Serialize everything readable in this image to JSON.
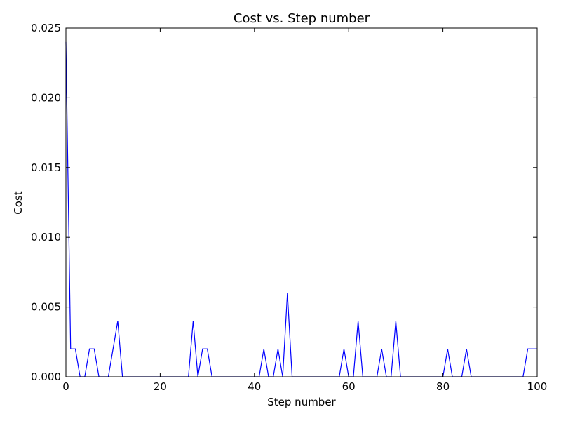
{
  "chart_data": {
    "type": "line",
    "title": "Cost vs. Step number",
    "xlabel": "Step number",
    "ylabel": "Cost",
    "xlim": [
      0,
      100
    ],
    "ylim": [
      0,
      0.025
    ],
    "grid": false,
    "x_ticks": [
      0,
      20,
      40,
      60,
      80,
      100
    ],
    "x_tick_labels": [
      "0",
      "20",
      "40",
      "60",
      "80",
      "100"
    ],
    "y_ticks": [
      0,
      0.005,
      0.01,
      0.015,
      0.02,
      0.025
    ],
    "y_tick_labels": [
      "0.000",
      "0.005",
      "0.010",
      "0.015",
      "0.020",
      "0.025"
    ],
    "line_color": "#0000ff",
    "series": [
      {
        "x": [
          0,
          1,
          2,
          3,
          4,
          5,
          6,
          7,
          8,
          9,
          10,
          11,
          12,
          13,
          14,
          15,
          16,
          17,
          18,
          19,
          20,
          21,
          22,
          23,
          24,
          25,
          26,
          27,
          28,
          29,
          30,
          31,
          32,
          33,
          34,
          35,
          36,
          37,
          38,
          39,
          40,
          41,
          42,
          43,
          44,
          45,
          46,
          47,
          48,
          49,
          50,
          51,
          52,
          53,
          54,
          55,
          56,
          57,
          58,
          59,
          60,
          61,
          62,
          63,
          64,
          65,
          66,
          67,
          68,
          69,
          70,
          71,
          72,
          73,
          74,
          75,
          76,
          77,
          78,
          79,
          80,
          81,
          82,
          83,
          84,
          85,
          86,
          87,
          88,
          89,
          90,
          91,
          92,
          93,
          94,
          95,
          96,
          97,
          98,
          99,
          100
        ],
        "y": [
          0.024,
          0.002,
          0.002,
          0,
          0,
          0.002,
          0.002,
          0,
          0,
          0,
          0.002,
          0.004,
          0,
          0,
          0,
          0,
          0,
          0,
          0,
          0,
          0,
          0,
          0,
          0,
          0,
          0,
          0,
          0.004,
          0,
          0.002,
          0.002,
          0,
          0,
          0,
          0,
          0,
          0,
          0,
          0,
          0,
          0,
          0,
          0.002,
          0,
          0,
          0.002,
          0,
          0.006,
          0,
          0,
          0,
          0,
          0,
          0,
          0,
          0,
          0,
          0,
          0,
          0.002,
          0,
          0,
          0.004,
          0,
          0,
          0,
          0,
          0.002,
          0,
          0,
          0.004,
          0,
          0,
          0,
          0,
          0,
          0,
          0,
          0,
          0,
          0,
          0.002,
          0,
          0,
          0,
          0.002,
          0,
          0,
          0,
          0,
          0,
          0,
          0,
          0,
          0,
          0,
          0,
          0,
          0.002,
          0.002,
          0.002
        ]
      }
    ]
  }
}
